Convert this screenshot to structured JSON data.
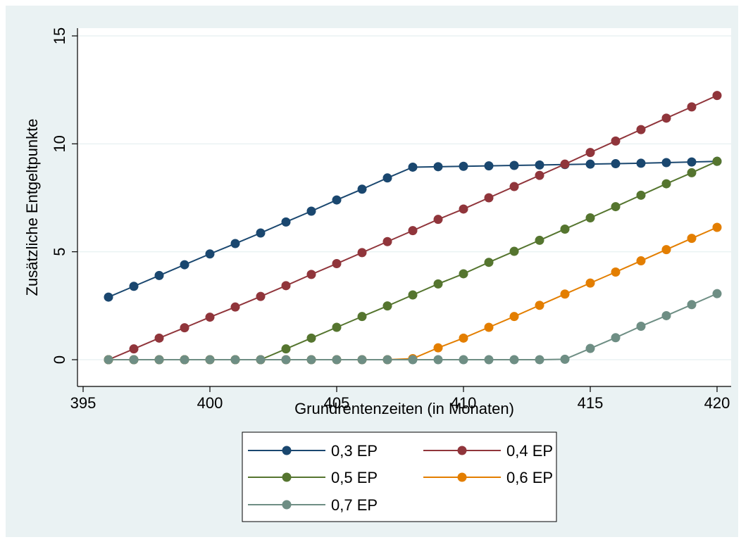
{
  "chart_data": {
    "type": "line",
    "xlabel": "Grundrentenzeiten (in Monaten)",
    "ylabel": "Zusätzliche Entgeltpunkte",
    "xlim": [
      395,
      420
    ],
    "ylim": [
      0,
      15
    ],
    "x_ticks": [
      395,
      400,
      405,
      410,
      415,
      420
    ],
    "y_ticks": [
      0,
      5,
      10,
      15
    ],
    "grid": "horizontal",
    "legend_position": "bottom",
    "markers": "filled-circle",
    "x": [
      396,
      397,
      398,
      399,
      400,
      401,
      402,
      403,
      404,
      405,
      406,
      407,
      408,
      409,
      410,
      411,
      412,
      413,
      414,
      415,
      416,
      417,
      418,
      419,
      420
    ],
    "series": [
      {
        "name": "0,3 EP",
        "color": "#1a476f",
        "values": [
          2.9,
          3.4,
          3.9,
          4.4,
          4.9,
          5.38,
          5.87,
          6.38,
          6.88,
          7.4,
          7.9,
          8.42,
          8.92,
          8.94,
          8.96,
          8.98,
          9.0,
          9.02,
          9.04,
          9.06,
          9.08,
          9.1,
          9.13,
          9.16,
          9.19
        ]
      },
      {
        "name": "0,4 EP",
        "color": "#90353b",
        "values": [
          0,
          0.5,
          1.0,
          1.48,
          1.97,
          2.44,
          2.93,
          3.43,
          3.95,
          4.45,
          4.96,
          5.47,
          5.98,
          6.5,
          6.98,
          7.5,
          8.02,
          8.54,
          9.06,
          9.6,
          10.13,
          10.66,
          11.19,
          11.71,
          12.24
        ]
      },
      {
        "name": "0,5 EP",
        "color": "#55752f",
        "values": [
          0,
          0,
          0,
          0,
          0,
          0,
          0,
          0.5,
          1.0,
          1.5,
          2.0,
          2.49,
          3.0,
          3.51,
          3.98,
          4.51,
          5.02,
          5.53,
          6.05,
          6.57,
          7.09,
          7.62,
          8.15,
          8.66,
          9.19
        ]
      },
      {
        "name": "0,6 EP",
        "color": "#e37e00",
        "values": [
          0,
          0,
          0,
          0,
          0,
          0,
          0,
          0,
          0,
          0,
          0,
          0,
          0.05,
          0.55,
          1.0,
          1.5,
          2.0,
          2.52,
          3.04,
          3.55,
          4.06,
          4.58,
          5.1,
          5.62,
          6.13
        ]
      },
      {
        "name": "0,7 EP",
        "color": "#6e8e84",
        "values": [
          0,
          0,
          0,
          0,
          0,
          0,
          0,
          0,
          0,
          0,
          0,
          0,
          0,
          0,
          0,
          0,
          0,
          0,
          0.02,
          0.52,
          1.02,
          1.55,
          2.04,
          2.55,
          3.06
        ]
      }
    ]
  }
}
